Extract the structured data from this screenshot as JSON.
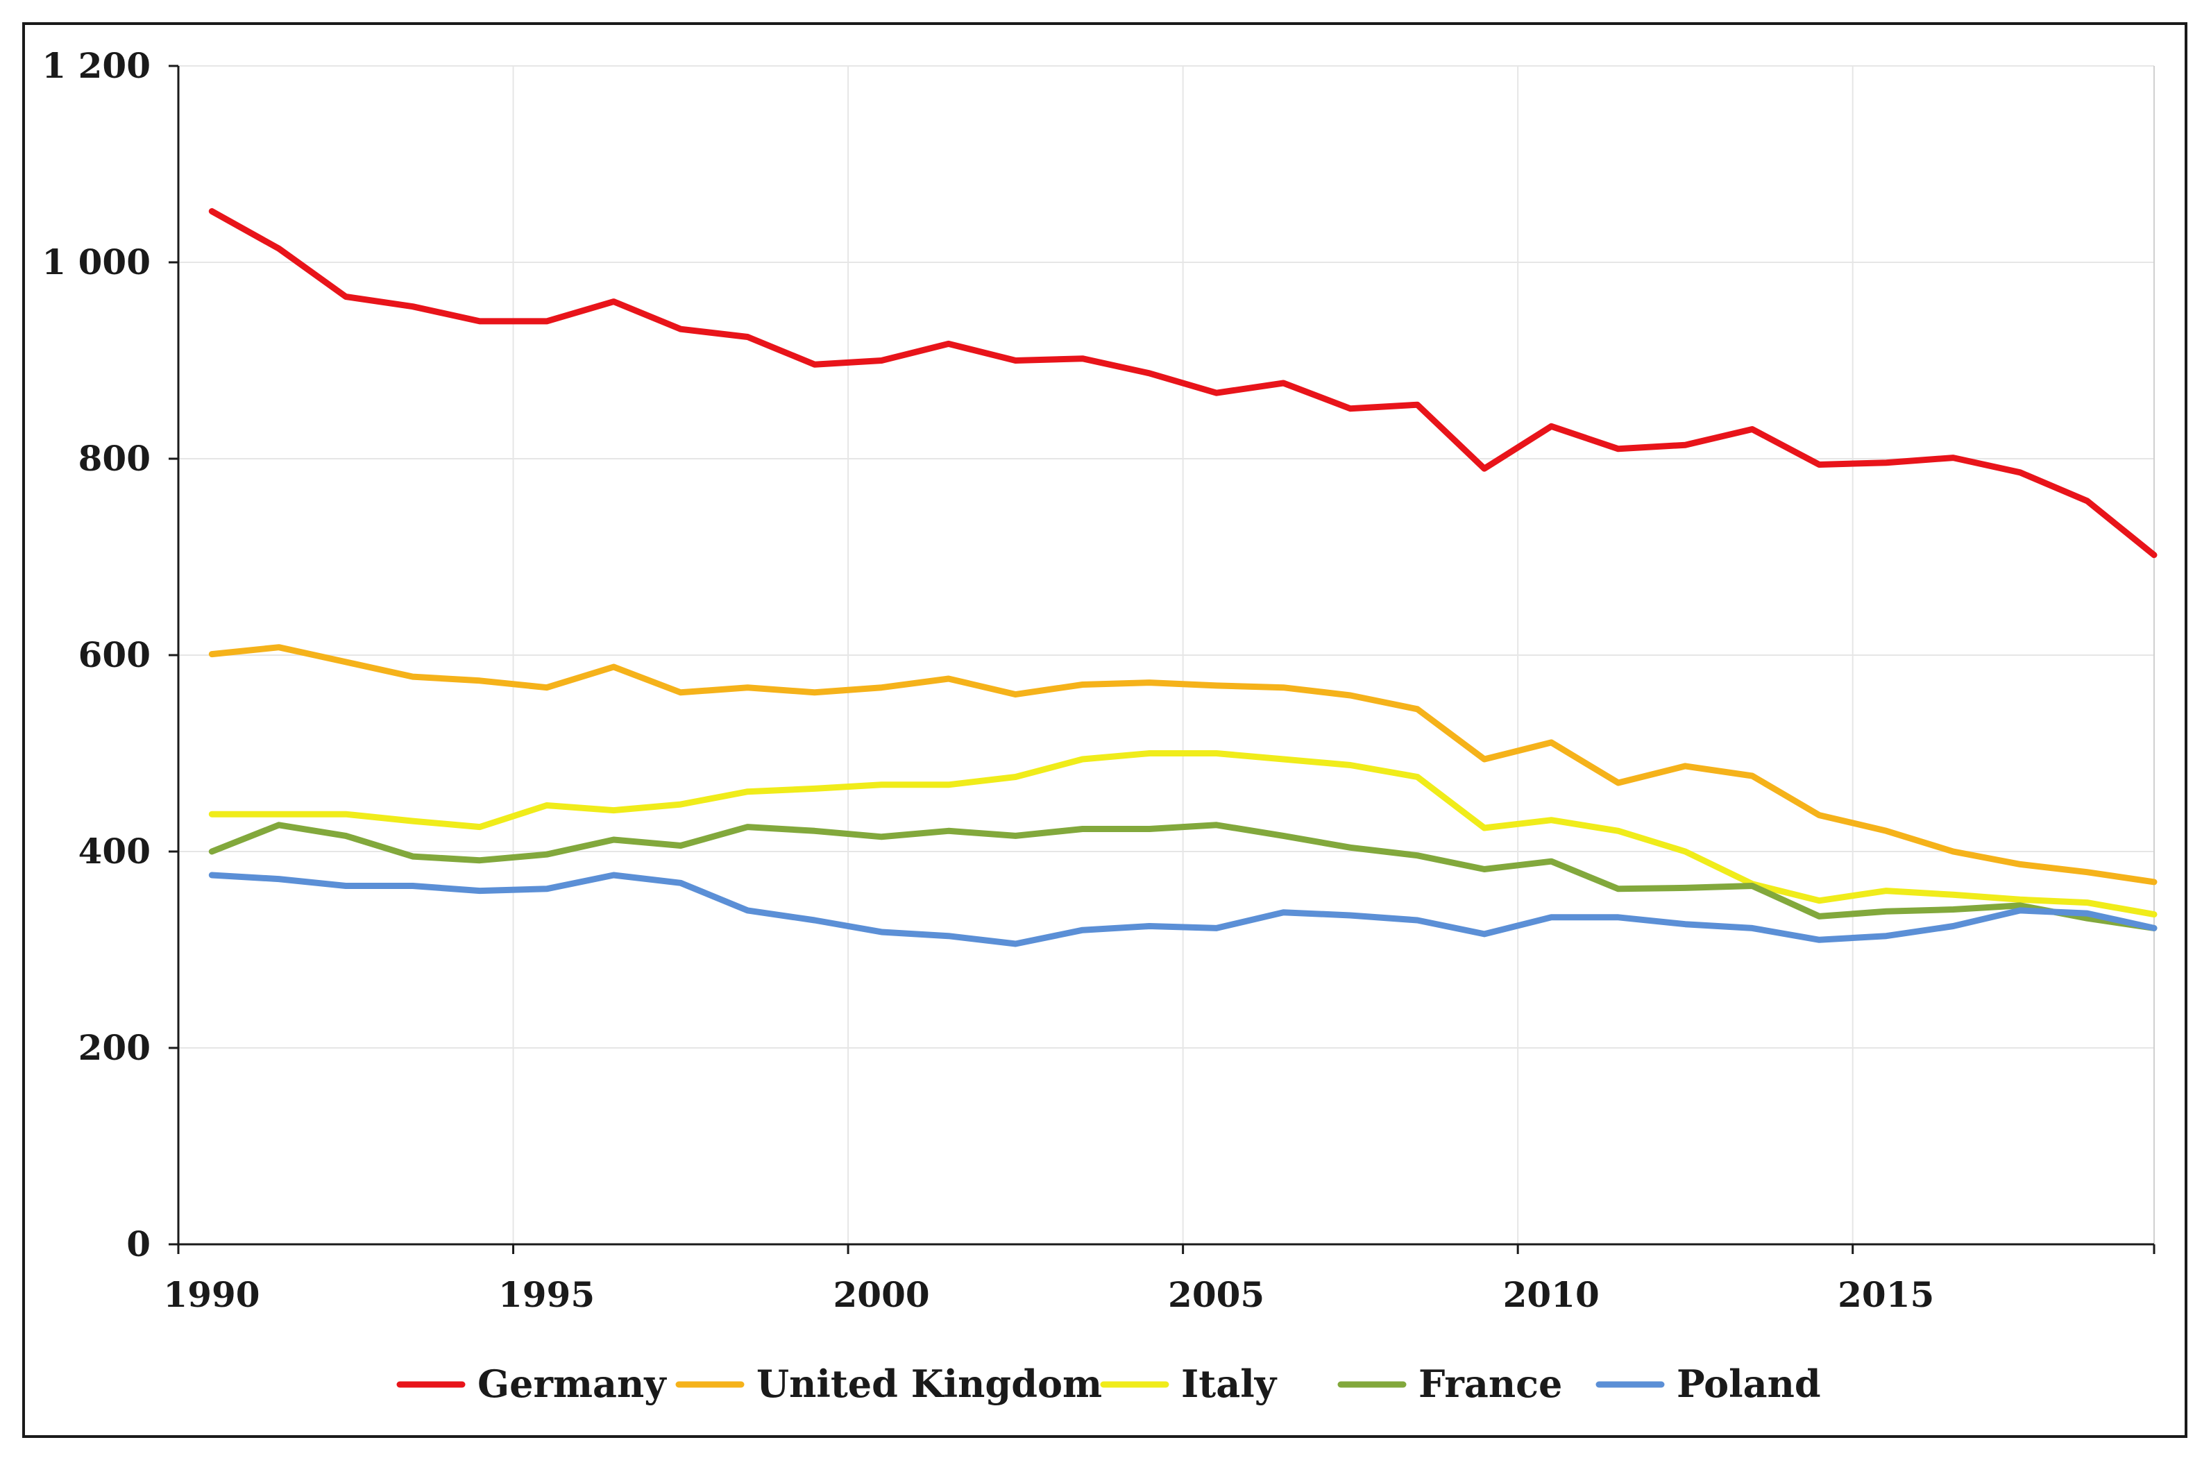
{
  "chart_data": {
    "type": "line",
    "title": "",
    "xlabel": "",
    "ylabel": "",
    "xlim": [
      1990,
      2019.5
    ],
    "ylim": [
      0,
      1200
    ],
    "grid": true,
    "legend_position": "bottom",
    "x_ticks": [
      1990,
      1995,
      2000,
      2005,
      2010,
      2015
    ],
    "y_ticks": [
      {
        "value": 0,
        "label": "0"
      },
      {
        "value": 200,
        "label": "200"
      },
      {
        "value": 400,
        "label": "400"
      },
      {
        "value": 600,
        "label": "600"
      },
      {
        "value": 800,
        "label": "800"
      },
      {
        "value": 1000,
        "label": "1 000"
      },
      {
        "value": 1200,
        "label": "1 200"
      }
    ],
    "x": [
      1990.5,
      1991.5,
      1992.5,
      1993.5,
      1994.5,
      1995.5,
      1996.5,
      1997.5,
      1998.5,
      1999.5,
      2000.5,
      2001.5,
      2002.5,
      2003.5,
      2004.5,
      2005.5,
      2006.5,
      2007.5,
      2008.5,
      2009.5,
      2010.5,
      2011.5,
      2012.5,
      2013.5,
      2014.5,
      2015.5,
      2016.5,
      2017.5,
      2018.5,
      2019.5
    ],
    "series": [
      {
        "name": "Germany",
        "color": "#e8141a",
        "values": [
          1052,
          1014,
          965,
          955,
          940,
          940,
          960,
          932,
          924,
          896,
          900,
          917,
          900,
          902,
          887,
          867,
          877,
          851,
          855,
          790,
          833,
          810,
          814,
          830,
          794,
          796,
          801,
          786,
          757,
          702
        ]
      },
      {
        "name": "United Kingdom",
        "color": "#f5b21a",
        "values": [
          601,
          608,
          593,
          578,
          574,
          567,
          588,
          562,
          567,
          562,
          567,
          576,
          560,
          570,
          572,
          569,
          567,
          559,
          545,
          494,
          511,
          470,
          487,
          477,
          437,
          421,
          400,
          387,
          379,
          369
        ]
      },
      {
        "name": "Italy",
        "color": "#f0ec1a",
        "values": [
          438,
          438,
          438,
          431,
          425,
          447,
          442,
          448,
          461,
          464,
          468,
          468,
          476,
          494,
          500,
          500,
          494,
          488,
          476,
          424,
          432,
          421,
          400,
          367,
          350,
          360,
          356,
          351,
          348,
          336
        ]
      },
      {
        "name": "France",
        "color": "#82a83c",
        "values": [
          400,
          427,
          416,
          395,
          391,
          397,
          412,
          406,
          425,
          421,
          415,
          421,
          416,
          423,
          423,
          427,
          416,
          404,
          396,
          382,
          390,
          362,
          363,
          365,
          334,
          339,
          341,
          345,
          332,
          322
        ]
      },
      {
        "name": "Poland",
        "color": "#5b8fd6",
        "values": [
          376,
          372,
          365,
          365,
          360,
          362,
          376,
          368,
          340,
          330,
          318,
          314,
          306,
          320,
          324,
          322,
          338,
          335,
          330,
          316,
          333,
          333,
          326,
          322,
          310,
          314,
          324,
          340,
          337,
          322
        ]
      }
    ]
  }
}
